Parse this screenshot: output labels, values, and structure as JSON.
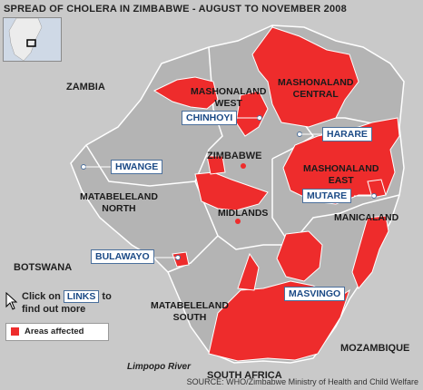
{
  "title": "SPREAD OF CHOLERA IN ZIMBABWE - AUGUST TO NOVEMBER 2008",
  "countries": {
    "zambia": "ZAMBIA",
    "zimbabwe": "ZIMBABWE",
    "botswana": "BOTSWANA",
    "mozambique": "MOZAMBIQUE",
    "south_africa": "SOUTH AFRICA"
  },
  "provinces": {
    "mashonaland_west_1": "MASHONALAND",
    "mashonaland_west_2": "WEST",
    "mashonaland_central_1": "MASHONALAND",
    "mashonaland_central_2": "CENTRAL",
    "mashonaland_east_1": "MASHONALAND",
    "mashonaland_east_2": "EAST",
    "matabeleland_north_1": "MATABELELAND",
    "matabeleland_north_2": "NORTH",
    "matabeleland_south_1": "MATABELELAND",
    "matabeleland_south_2": "SOUTH",
    "midlands": "MIDLANDS",
    "manicaland": "MANICALAND"
  },
  "cities": {
    "chinhoyi": "CHINHOYI",
    "harare": "HARARE",
    "hwange": "HWANGE",
    "mutare": "MUTARE",
    "bulawayo": "BULAWAYO",
    "masvingo": "MASVINGO"
  },
  "river": "Limpopo River",
  "hint": {
    "click_on": "Click on",
    "links": "LINKS",
    "to": "to",
    "line2": "find out more"
  },
  "legend": {
    "label": "Areas affected",
    "color": "#ee2c2c"
  },
  "colors": {
    "land": "#c8c8c8",
    "zimbabwe": "#b3b3b3",
    "affected": "#ee2c2c",
    "water": "#cfd9e6"
  },
  "source": "SOURCE: WHO/Zimbabwe Ministry of Health and Child Welfare"
}
